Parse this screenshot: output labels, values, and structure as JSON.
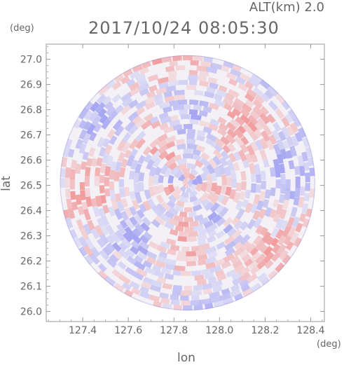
{
  "header": {
    "altitude_label": "ALT(km) 2.0",
    "timestamp": "2017/10/24 08:05:30"
  },
  "chart_data": {
    "type": "heatmap",
    "title": "2017/10/24 08:05:30",
    "subtitle": "ALT(km) 2.0",
    "xlabel": "lon",
    "ylabel": "lat",
    "x_unit": "(deg)",
    "y_unit": "(deg)",
    "xlim": [
      127.24,
      128.46
    ],
    "ylim": [
      25.96,
      27.06
    ],
    "xticks": [
      "127.4",
      "127.6",
      "127.8",
      "128.0",
      "128.2",
      "128.4"
    ],
    "yticks": [
      "26.0",
      "26.1",
      "26.2",
      "26.3",
      "26.4",
      "26.5",
      "26.6",
      "26.7",
      "26.8",
      "26.9",
      "27.0"
    ],
    "center": [
      127.86,
      26.51
    ],
    "radius_deg": 0.56,
    "color_positive": "#f08080",
    "color_negative": "#8c8cf0",
    "grid": false,
    "legend": "none"
  }
}
